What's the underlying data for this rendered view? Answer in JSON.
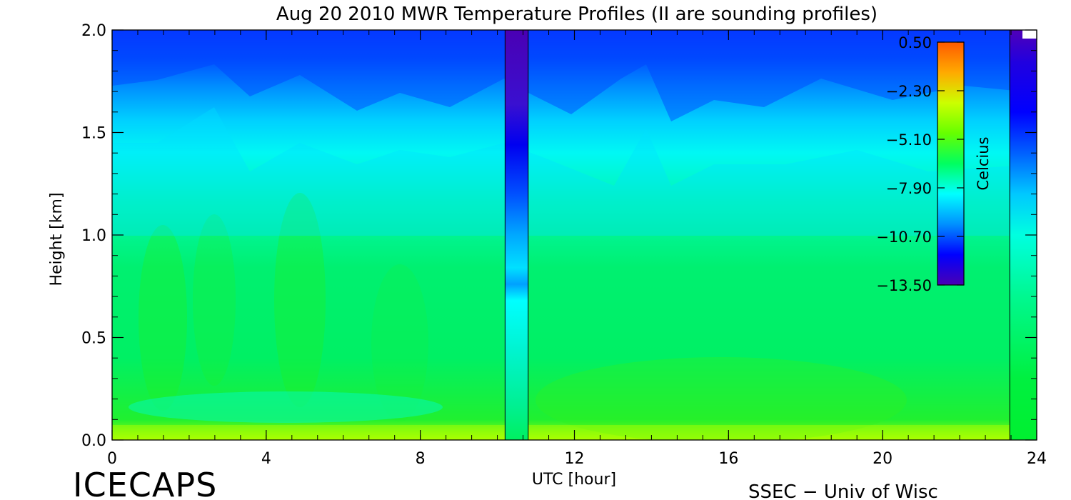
{
  "chart_data": {
    "type": "heatmap",
    "title": "Aug 20 2010 MWR Temperature Profiles (II are sounding profiles)",
    "xlabel": "UTC [hour]",
    "ylabel": "Height [km]",
    "xlim": [
      0,
      24
    ],
    "ylim": [
      0,
      2.0
    ],
    "x_ticks": [
      {
        "value": 0,
        "label": "0"
      },
      {
        "value": 4,
        "label": "4"
      },
      {
        "value": 8,
        "label": "8"
      },
      {
        "value": 12,
        "label": "12"
      },
      {
        "value": 16,
        "label": "16"
      },
      {
        "value": 20,
        "label": "20"
      },
      {
        "value": 24,
        "label": "24"
      }
    ],
    "y_ticks": [
      {
        "value": 0.0,
        "label": "0.0"
      },
      {
        "value": 0.5,
        "label": "0.5"
      },
      {
        "value": 1.0,
        "label": "1.0"
      },
      {
        "value": 1.5,
        "label": "1.5"
      },
      {
        "value": 2.0,
        "label": "2.0"
      }
    ],
    "colorbar": {
      "label": "Celcius",
      "min": -13.5,
      "max": 0.5,
      "ticks": [
        {
          "value": 0.5,
          "label": "0.50"
        },
        {
          "value": -2.3,
          "label": "−2.30"
        },
        {
          "value": -5.1,
          "label": "−5.10"
        },
        {
          "value": -7.9,
          "label": "−7.90"
        },
        {
          "value": -10.7,
          "label": "−10.70"
        },
        {
          "value": -13.5,
          "label": "−13.50"
        }
      ],
      "colors": [
        "#4a00b4",
        "#0000ff",
        "#0090ff",
        "#00ffff",
        "#00ff60",
        "#66ff00",
        "#ccff00",
        "#ffaa00",
        "#ff5a00"
      ]
    },
    "sounding_profiles": [
      {
        "x_start": 10.2,
        "x_end": 10.8
      },
      {
        "x_start": 23.3,
        "x_end": 24.0
      }
    ]
  },
  "footer": {
    "left_label": "ICECAPS",
    "right_label": "SSEC − Univ of Wisc"
  }
}
